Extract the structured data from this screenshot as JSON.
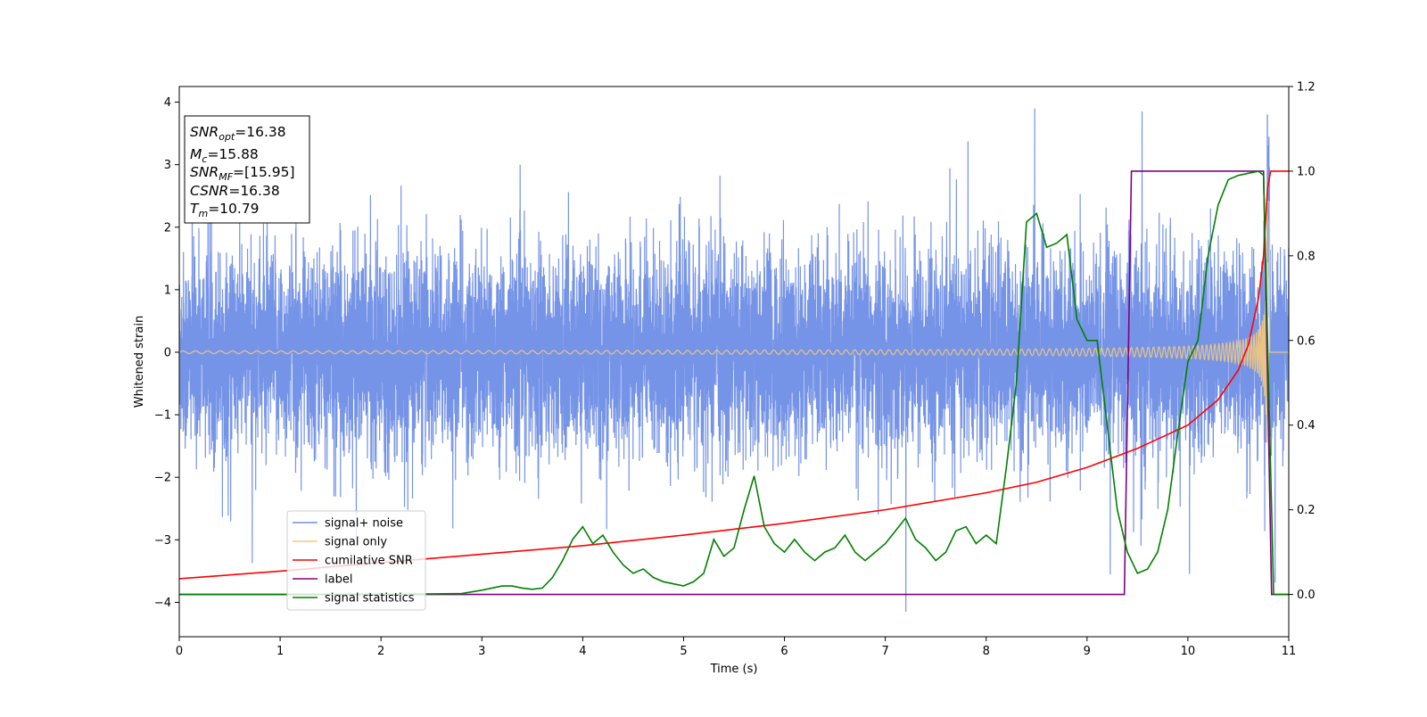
{
  "chart_data": {
    "type": "line",
    "xlabel": "Time (s)",
    "ylabel": "Whitened strain",
    "xlim": [
      0,
      11
    ],
    "ylim_left": [
      -4.55,
      4.25
    ],
    "ylim_right": [
      -0.1,
      1.2
    ],
    "x_ticks": [
      "0",
      "1",
      "2",
      "3",
      "4",
      "5",
      "6",
      "7",
      "8",
      "9",
      "10",
      "11"
    ],
    "y_ticks_left": [
      "4",
      "3",
      "2",
      "1",
      "0",
      "−1",
      "−2",
      "−3",
      "−4"
    ],
    "y_ticks_right": [
      "1.2",
      "1.0",
      "0.8",
      "0.6",
      "0.4",
      "0.2",
      "0.0"
    ],
    "annotation": {
      "snr_opt": {
        "main": "SNR",
        "sub": "opt",
        "value": "=16.38"
      },
      "mc": {
        "main": "M",
        "sub": "c",
        "value": "=15.88"
      },
      "snr_mf": {
        "main": "SNR",
        "sub": "MF",
        "value": "=[15.95]"
      },
      "csnr": {
        "main": "CSNR",
        "sub": "",
        "value": "=16.38"
      },
      "tm": {
        "main": "T",
        "sub": "m",
        "value": "=10.79"
      }
    },
    "legend_position": "lower-left",
    "series": [
      {
        "name": "signal+ noise",
        "color": "#6f8ee6",
        "axis": "left",
        "kind": "noise",
        "amplitude_typical": 1.3,
        "amplitude_peak": 3.9,
        "merger_time": 10.79
      },
      {
        "name": "signal only",
        "color": "#f5c97b",
        "axis": "left",
        "kind": "chirp",
        "amplitude_start": 0.05,
        "amplitude_peak": 2.5,
        "merger_time": 10.79
      },
      {
        "name": "cumilative SNR",
        "color": "#ff0000",
        "axis": "right",
        "x": [
          0,
          1,
          2,
          3,
          4,
          5,
          6,
          7,
          8,
          8.5,
          9,
          9.5,
          10,
          10.3,
          10.5,
          10.6,
          10.7,
          10.75,
          10.79,
          10.82,
          11
        ],
        "y": [
          0.037,
          0.055,
          0.075,
          0.095,
          0.115,
          0.14,
          0.168,
          0.2,
          0.24,
          0.265,
          0.3,
          0.345,
          0.4,
          0.46,
          0.53,
          0.59,
          0.7,
          0.8,
          0.96,
          1.0,
          1.0
        ]
      },
      {
        "name": "label",
        "color": "#800080",
        "axis": "right",
        "x": [
          0,
          9.37,
          9.44,
          10.75,
          10.83,
          11
        ],
        "y": [
          0,
          0,
          1,
          1,
          0,
          0
        ]
      },
      {
        "name": "signal statistics",
        "color": "#008000",
        "axis": "right",
        "x": [
          0,
          2.0,
          2.8,
          3.0,
          3.2,
          3.3,
          3.4,
          3.5,
          3.6,
          3.7,
          3.8,
          3.9,
          4.0,
          4.1,
          4.2,
          4.3,
          4.4,
          4.5,
          4.6,
          4.7,
          4.8,
          4.9,
          5.0,
          5.1,
          5.2,
          5.3,
          5.4,
          5.5,
          5.6,
          5.7,
          5.8,
          5.9,
          6.0,
          6.1,
          6.2,
          6.3,
          6.4,
          6.5,
          6.6,
          6.7,
          6.8,
          6.9,
          7.0,
          7.1,
          7.2,
          7.3,
          7.4,
          7.5,
          7.6,
          7.7,
          7.8,
          7.9,
          8.0,
          8.1,
          8.2,
          8.3,
          8.4,
          8.5,
          8.6,
          8.7,
          8.8,
          8.9,
          9.0,
          9.1,
          9.2,
          9.3,
          9.4,
          9.5,
          9.6,
          9.7,
          9.8,
          9.9,
          10.0,
          10.1,
          10.2,
          10.3,
          10.4,
          10.5,
          10.6,
          10.7,
          10.75,
          10.8,
          10.85,
          11
        ],
        "y": [
          0,
          0,
          0.002,
          0.01,
          0.02,
          0.02,
          0.015,
          0.012,
          0.015,
          0.04,
          0.08,
          0.13,
          0.16,
          0.12,
          0.14,
          0.1,
          0.07,
          0.05,
          0.06,
          0.04,
          0.03,
          0.025,
          0.02,
          0.03,
          0.05,
          0.13,
          0.09,
          0.11,
          0.2,
          0.28,
          0.16,
          0.12,
          0.1,
          0.13,
          0.1,
          0.08,
          0.1,
          0.11,
          0.14,
          0.1,
          0.08,
          0.1,
          0.12,
          0.15,
          0.18,
          0.13,
          0.11,
          0.08,
          0.1,
          0.15,
          0.16,
          0.12,
          0.14,
          0.12,
          0.3,
          0.5,
          0.88,
          0.9,
          0.82,
          0.83,
          0.85,
          0.65,
          0.6,
          0.6,
          0.4,
          0.2,
          0.1,
          0.05,
          0.06,
          0.1,
          0.2,
          0.38,
          0.55,
          0.6,
          0.8,
          0.92,
          0.98,
          0.99,
          0.995,
          1.0,
          0.99,
          0.5,
          0.0,
          0.0
        ]
      }
    ]
  }
}
